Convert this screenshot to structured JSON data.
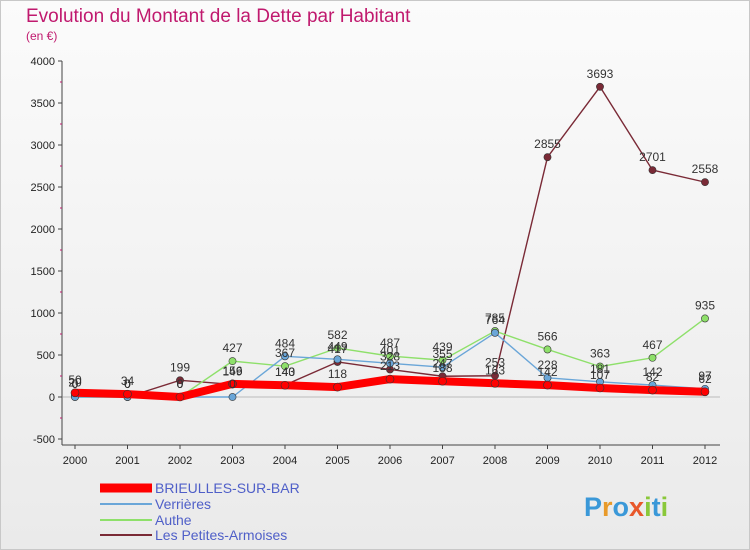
{
  "chart_data": {
    "type": "line",
    "title": "Evolution du Montant de la Dette par Habitant",
    "subtitle": "(en €)",
    "x": [
      "2000",
      "2001",
      "2002",
      "2003",
      "2004",
      "2005",
      "2006",
      "2007",
      "2008",
      "2009",
      "2010",
      "2011",
      "2012"
    ],
    "ylim": [
      -500,
      4000
    ],
    "yticks": [
      -500,
      0,
      500,
      1000,
      1500,
      2000,
      2500,
      3000,
      3500,
      4000
    ],
    "grid": false,
    "legend_position": "bottom-left",
    "series": [
      {
        "name": "BRIEULLES-SUR-BAR",
        "color": "#ff0000",
        "values": [
          50,
          34,
          0,
          156,
          140,
          118,
          213,
          188,
          163,
          142,
          107,
          82,
          62
        ],
        "labels": [
          "50",
          "34",
          "0",
          "156",
          "140",
          "118",
          "213",
          "188",
          "163",
          "142",
          "107",
          "82",
          "62"
        ]
      },
      {
        "name": "Verrières",
        "color": "#6aa6d8",
        "values": [
          0,
          0,
          0,
          0,
          484,
          449,
          401,
          355,
          764,
          228,
          181,
          142,
          97
        ],
        "labels": [
          "0",
          "0",
          "0",
          "0",
          "484",
          "449",
          "401",
          "355",
          "764",
          "228",
          "181",
          "142",
          "97"
        ]
      },
      {
        "name": "Authe",
        "color": "#8ee06a",
        "values": [
          0,
          0,
          0,
          427,
          367,
          582,
          487,
          439,
          785,
          566,
          363,
          467,
          935
        ],
        "labels": [
          "0",
          "0",
          "0",
          "427",
          "367",
          "582",
          "487",
          "439",
          "785",
          "566",
          "363",
          "467",
          "935"
        ]
      },
      {
        "name": "Les Petites-Armoises",
        "color": "#7a2a36",
        "values": [
          20,
          0,
          199,
          149,
          143,
          417,
          328,
          247,
          253,
          2855,
          3693,
          2701,
          2558
        ],
        "labels": [
          "20",
          "0",
          "199",
          "149",
          "143",
          "417",
          "328",
          "247",
          "253",
          "2855",
          "3693",
          "2701",
          "2558"
        ]
      }
    ]
  },
  "logo": {
    "text": "Proxiti",
    "letters": [
      "P",
      "r",
      "o",
      "x",
      "i",
      "t",
      "i"
    ],
    "colors": [
      "#3a98d8",
      "#e89a2a",
      "#3a98d8",
      "#e8572a",
      "#8ac83a",
      "#3a98d8",
      "#8ac83a"
    ]
  }
}
